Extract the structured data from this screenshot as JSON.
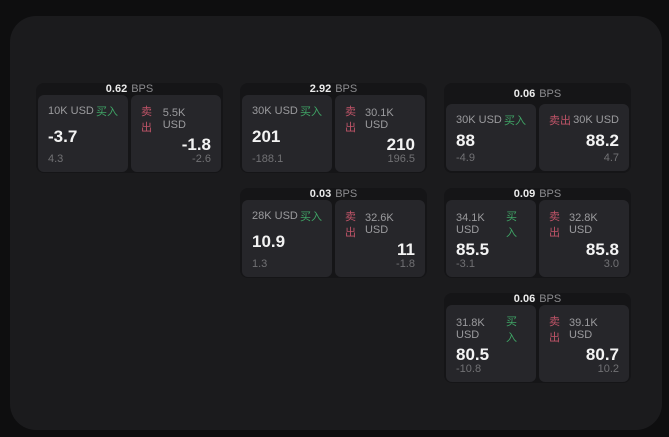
{
  "colors": {
    "page_bg": "#0e0e0f",
    "window_bg": "#1b1b1d",
    "card_bg": "#151517",
    "panel_bg": "#26262a",
    "buy_green": "#3fa465",
    "sell_red": "#c05468",
    "text_primary": "#f3f3f3",
    "text_secondary": "#9b9b9e",
    "text_muted": "#717174"
  },
  "labels": {
    "bps_unit": "BPS",
    "buy": "买入",
    "sell": "卖出"
  },
  "cards": [
    {
      "bps": "0.62",
      "buy": {
        "amount": "10K USD",
        "price": "-3.7",
        "delta": "4.3"
      },
      "sell": {
        "amount": "5.5K USD",
        "price": "-1.8",
        "delta": "-2.6"
      }
    },
    {
      "bps": "2.92",
      "buy": {
        "amount": "30K USD",
        "price": "201",
        "delta": "-188.1"
      },
      "sell": {
        "amount": "30.1K USD",
        "price": "210",
        "delta": "196.5"
      }
    },
    {
      "bps": "0.06",
      "buy": {
        "amount": "30K USD",
        "price": "88",
        "delta": "-4.9"
      },
      "sell": {
        "amount": "30K USD",
        "price": "88.2",
        "delta": "4.7"
      }
    },
    {
      "bps": "0.03",
      "buy": {
        "amount": "28K USD",
        "price": "10.9",
        "delta": "1.3"
      },
      "sell": {
        "amount": "32.6K USD",
        "price": "11",
        "delta": "-1.8"
      }
    },
    {
      "bps": "0.09",
      "buy": {
        "amount": "34.1K USD",
        "price": "85.5",
        "delta": "-3.1"
      },
      "sell": {
        "amount": "32.8K USD",
        "price": "85.8",
        "delta": "3.0"
      }
    },
    {
      "bps": "0.06",
      "buy": {
        "amount": "31.8K USD",
        "price": "80.5",
        "delta": "-10.8"
      },
      "sell": {
        "amount": "39.1K USD",
        "price": "80.7",
        "delta": "10.2"
      }
    }
  ]
}
